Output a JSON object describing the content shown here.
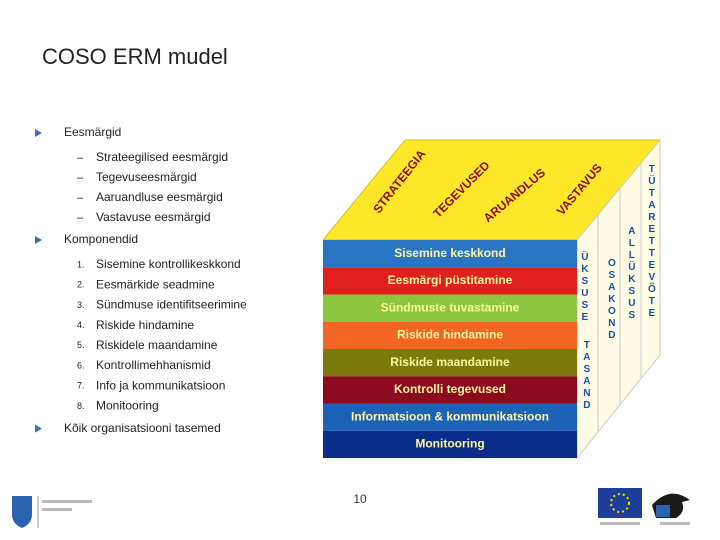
{
  "title": "COSO ERM mudel",
  "sections": [
    {
      "heading": "Eesmärgid",
      "items": [
        {
          "marker": "–",
          "text": "Strateegilised eesmärgid"
        },
        {
          "marker": "–",
          "text": "Tegevuseesmärgid"
        },
        {
          "marker": "–",
          "text": "Aaruandluse eesmärgid"
        },
        {
          "marker": "–",
          "text": "Vastavuse eesmärgid"
        }
      ]
    },
    {
      "heading": "Komponendid",
      "items": [
        {
          "marker": "1.",
          "text": "Sisemine kontrollikeskkond"
        },
        {
          "marker": "2.",
          "text": "Eesmärkide seadmine"
        },
        {
          "marker": "3.",
          "text": "Sündmuse identifitseerimine"
        },
        {
          "marker": "4.",
          "text": "Riskide hindamine"
        },
        {
          "marker": "5.",
          "text": "Riskidele maandamine"
        },
        {
          "marker": "6.",
          "text": "Kontrollimehhanismid"
        },
        {
          "marker": "7.",
          "text": "Info ja kommunikatsioon"
        },
        {
          "marker": "8.",
          "text": "Monitooring"
        }
      ]
    },
    {
      "heading": "Kõik organisatsiooni tasemed",
      "items": []
    }
  ],
  "cube": {
    "top": [
      "STRATEEGIA",
      "TEGEVUSED",
      "ARUANDLUS",
      "VASTAVUS"
    ],
    "rows": [
      {
        "label": "Sisemine keskkond",
        "color": "#2a74c4"
      },
      {
        "label": "Eesmärgi püstitamine",
        "color": "#e0201c"
      },
      {
        "label": "Sündmuste tuvastamine",
        "color": "#8cc63f"
      },
      {
        "label": "Riskide hindamine",
        "color": "#f26522"
      },
      {
        "label": "Riskide maandamine",
        "color": "#7d7a0c"
      },
      {
        "label": "Kontrolli tegevused",
        "color": "#8b0a1e"
      },
      {
        "label": "Informatsioon & kommunikatsioon",
        "color": "#1c63b7"
      },
      {
        "label": "Monitooring",
        "color": "#0b2d8a"
      }
    ],
    "side": [
      "ÜKSUSE",
      "TASAND",
      "OSAKOND",
      "ALLÜKSUS",
      "TÜTARETTEVÕTE"
    ]
  },
  "page_number": "10"
}
